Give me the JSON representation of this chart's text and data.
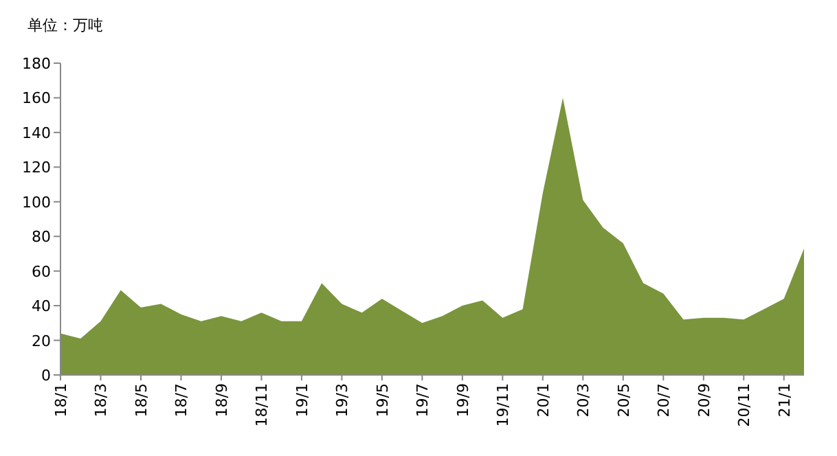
{
  "chart_data": {
    "type": "area",
    "title": "单位：万吨",
    "categories": [
      "18/1",
      null,
      "18/3",
      null,
      "18/5",
      null,
      "18/7",
      null,
      "18/9",
      null,
      "18/11",
      null,
      "19/1",
      null,
      "19/3",
      null,
      "19/5",
      null,
      "19/7",
      null,
      "19/9",
      null,
      "19/11",
      null,
      "20/1",
      null,
      "20/3",
      null,
      "20/5",
      null,
      "20/7",
      null,
      "20/9",
      null,
      "20/11",
      null,
      "21/1",
      null
    ],
    "series": [
      {
        "color": "#7a953c",
        "values": [
          24,
          21,
          31,
          49,
          39,
          41,
          35,
          31,
          34,
          31,
          36,
          31,
          31,
          53,
          41,
          36,
          44,
          37,
          30,
          34,
          40,
          43,
          33,
          38,
          105,
          160,
          101,
          85,
          76,
          53,
          47,
          32,
          33,
          33,
          32,
          38,
          44,
          73
        ]
      }
    ],
    "ylim": [
      0,
      180
    ],
    "yticks": [
      0,
      20,
      40,
      60,
      80,
      100,
      120,
      140,
      160,
      180
    ],
    "grid": false
  }
}
